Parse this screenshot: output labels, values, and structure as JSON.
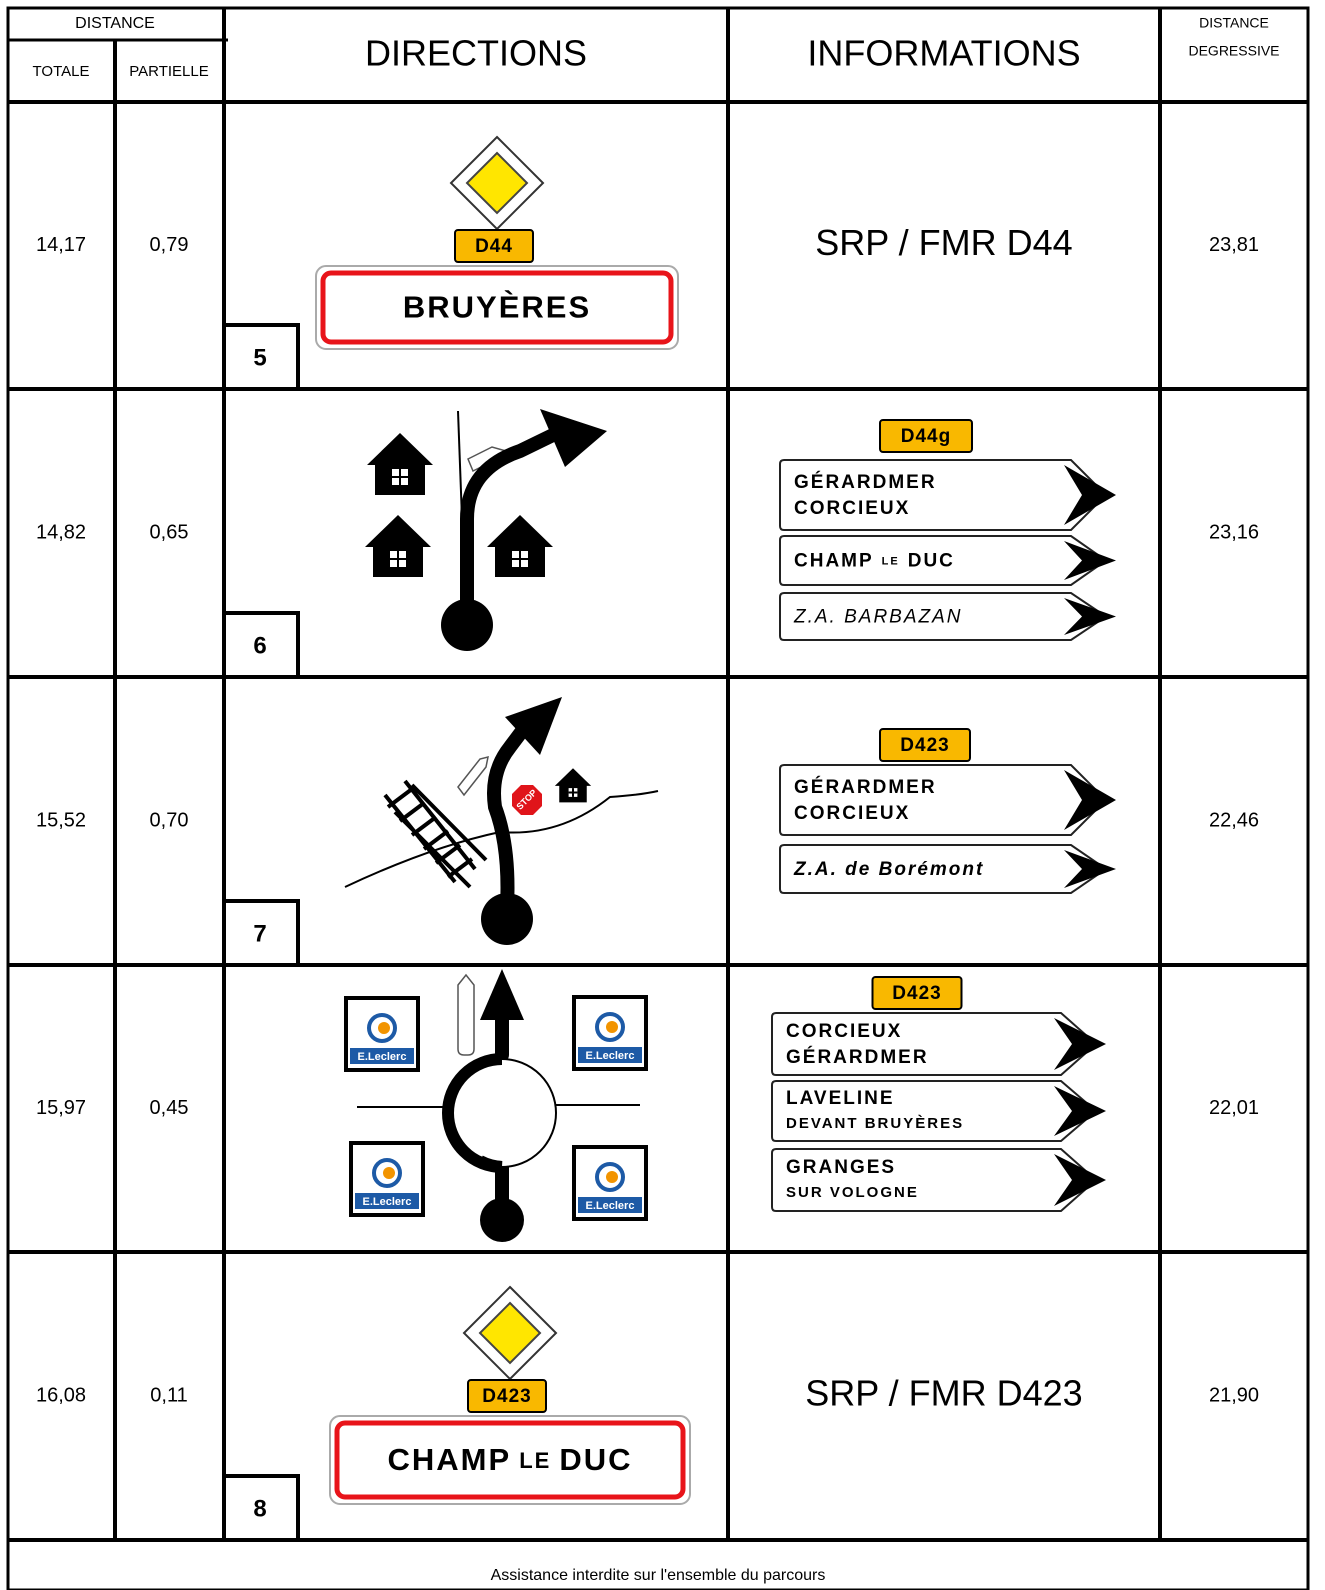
{
  "header": {
    "distance": "DISTANCE",
    "totale": "TOTALE",
    "partielle": "PARTIELLE",
    "directions": "DIRECTIONS",
    "informations": "INFORMATIONS",
    "degressive": [
      "DISTANCE",
      "DEGRESSIVE"
    ]
  },
  "pictograms": {
    "stop": "STOP",
    "leclerc": "E.Leclerc"
  },
  "rows": [
    {
      "totale": "14,17",
      "partielle": "0,79",
      "step": "5",
      "road": "D44",
      "place": [
        "BRUYÈRES"
      ],
      "information": "SRP / FMR D44",
      "degressive": "23,81"
    },
    {
      "totale": "14,82",
      "partielle": "0,65",
      "step": "6",
      "road": "D44g",
      "signs": [
        {
          "lines": [
            [
              "GÉRARDMER"
            ],
            [
              "CORCIEUX"
            ]
          ]
        },
        {
          "lines": [
            [
              "CHAMP",
              "LE",
              "DUC"
            ]
          ]
        },
        {
          "lines": [
            [
              "Z.A.  BARBAZAN"
            ]
          ],
          "style": "italic"
        }
      ],
      "degressive": "23,16"
    },
    {
      "totale": "15,52",
      "partielle": "0,70",
      "step": "7",
      "road": "D423",
      "signs": [
        {
          "lines": [
            [
              "GÉRARDMER"
            ],
            [
              "CORCIEUX"
            ]
          ]
        },
        {
          "lines": [
            [
              "Z.A.  de  Borémont"
            ]
          ],
          "style": "bold-italic"
        }
      ],
      "degressive": "22,46"
    },
    {
      "totale": "15,97",
      "partielle": "0,45",
      "road": "D423",
      "signs": [
        {
          "lines": [
            [
              "CORCIEUX"
            ],
            [
              "GÉRARDMER"
            ]
          ]
        },
        {
          "lines": [
            [
              "LAVELINE"
            ],
            [
              "DEVANT BRUYÈRES"
            ]
          ],
          "style": "sub"
        },
        {
          "lines": [
            [
              "GRANGES"
            ],
            [
              "SUR VOLOGNE"
            ]
          ],
          "style": "sub"
        }
      ],
      "degressive": "22,01"
    },
    {
      "totale": "16,08",
      "partielle": "0,11",
      "step": "8",
      "road": "D423",
      "place": [
        "CHAMP",
        "LE",
        "DUC"
      ],
      "information": "SRP / FMR D423",
      "degressive": "21,90"
    }
  ],
  "footer": "Assistance interdite sur l'ensemble du parcours"
}
